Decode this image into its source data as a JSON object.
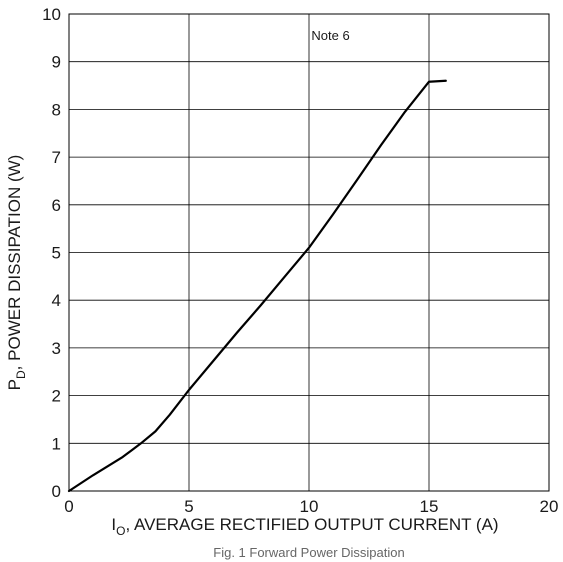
{
  "chart_data": {
    "type": "line",
    "title": "",
    "xlabel": {
      "main": "I",
      "sub": "O",
      "rest": ", AVERAGE RECTIFIED OUTPUT CURRENT (A)"
    },
    "ylabel": {
      "main": "P",
      "sub": "D",
      "rest": ", POWER DISSIPATION (W)"
    },
    "xlim": [
      0,
      20
    ],
    "ylim": [
      0,
      10
    ],
    "xticks": [
      0,
      5,
      10,
      15,
      20
    ],
    "yticks": [
      0,
      1,
      2,
      3,
      4,
      5,
      6,
      7,
      8,
      9,
      10
    ],
    "grid": true,
    "annotation": {
      "text": "Note 6",
      "x": 10.1,
      "y": 9.45
    },
    "caption": "Fig. 1 Forward Power Dissipation",
    "series": [
      {
        "x": [
          0,
          1,
          2.2,
          2.6,
          3,
          3.6,
          4.2,
          5,
          6,
          7,
          8,
          9,
          10,
          11,
          12,
          13,
          14,
          15,
          15.7
        ],
        "y": [
          0,
          0.33,
          0.7,
          0.85,
          1.0,
          1.25,
          1.6,
          2.12,
          2.72,
          3.32,
          3.9,
          4.5,
          5.1,
          5.8,
          6.52,
          7.25,
          7.95,
          8.58,
          8.6
        ]
      }
    ],
    "line_color": "#000000",
    "grid_color": "#000000"
  }
}
